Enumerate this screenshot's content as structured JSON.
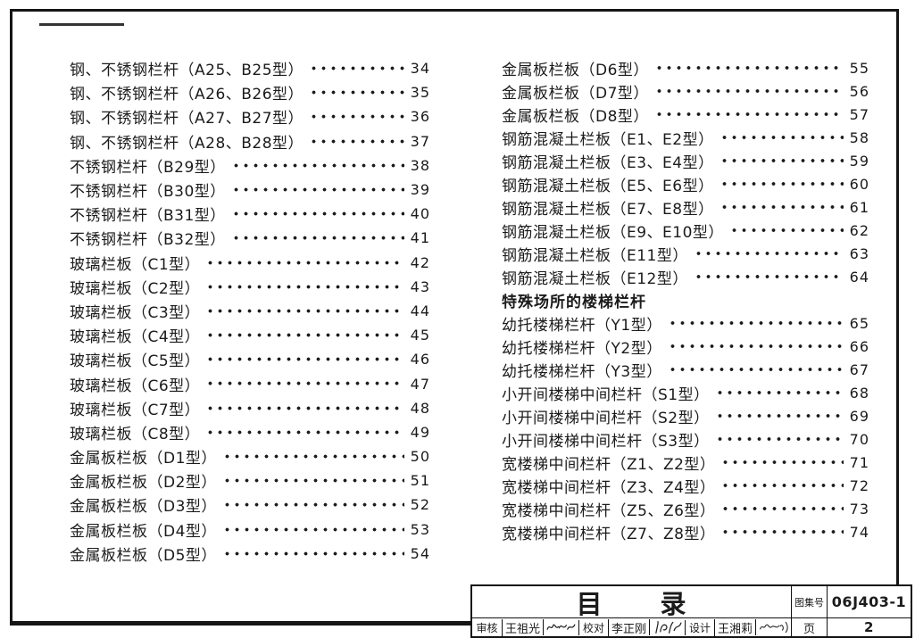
{
  "page": {
    "background": "#ffffff",
    "ink": "#1b1b1b"
  },
  "toc": {
    "left_column": [
      {
        "type": "entry",
        "title": "钢、不锈钢栏杆（A25、B25型）",
        "page": "34"
      },
      {
        "type": "entry",
        "title": "钢、不锈钢栏杆（A26、B26型）",
        "page": "35"
      },
      {
        "type": "entry",
        "title": "钢、不锈钢栏杆（A27、B27型）",
        "page": "36"
      },
      {
        "type": "entry",
        "title": "钢、不锈钢栏杆（A28、B28型）",
        "page": "37"
      },
      {
        "type": "entry",
        "title": "不锈钢栏杆（B29型）",
        "page": "38"
      },
      {
        "type": "entry",
        "title": "不锈钢栏杆（B30型）",
        "page": "39"
      },
      {
        "type": "entry",
        "title": "不锈钢栏杆（B31型）",
        "page": "40"
      },
      {
        "type": "entry",
        "title": "不锈钢栏杆（B32型）",
        "page": "41"
      },
      {
        "type": "entry",
        "title": "玻璃栏板（C1型）",
        "page": "42"
      },
      {
        "type": "entry",
        "title": "玻璃栏板（C2型）",
        "page": "43"
      },
      {
        "type": "entry",
        "title": "玻璃栏板（C3型）",
        "page": "44"
      },
      {
        "type": "entry",
        "title": "玻璃栏板（C4型）",
        "page": "45"
      },
      {
        "type": "entry",
        "title": "玻璃栏板（C5型）",
        "page": "46"
      },
      {
        "type": "entry",
        "title": "玻璃栏板（C6型）",
        "page": "47"
      },
      {
        "type": "entry",
        "title": "玻璃栏板（C7型）",
        "page": "48"
      },
      {
        "type": "entry",
        "title": "玻璃栏板（C8型）",
        "page": "49"
      },
      {
        "type": "entry",
        "title": "金属板栏板（D1型）",
        "page": "50"
      },
      {
        "type": "entry",
        "title": "金属板栏板（D2型）",
        "page": "51"
      },
      {
        "type": "entry",
        "title": "金属板栏板（D3型）",
        "page": "52"
      },
      {
        "type": "entry",
        "title": "金属板栏板（D4型）",
        "page": "53"
      },
      {
        "type": "entry",
        "title": "金属板栏板（D5型）",
        "page": "54"
      }
    ],
    "right_column": [
      {
        "type": "entry",
        "title": "金属板栏板（D6型）",
        "page": "55"
      },
      {
        "type": "entry",
        "title": "金属板栏板（D7型）",
        "page": "56"
      },
      {
        "type": "entry",
        "title": "金属板栏板（D8型）",
        "page": "57"
      },
      {
        "type": "entry",
        "title": "钢筋混凝土栏板（E1、E2型）",
        "page": "58"
      },
      {
        "type": "entry",
        "title": "钢筋混凝土栏板（E3、E4型）",
        "page": "59"
      },
      {
        "type": "entry",
        "title": "钢筋混凝土栏板（E5、E6型）",
        "page": "60"
      },
      {
        "type": "entry",
        "title": "钢筋混凝土栏板（E7、E8型）",
        "page": "61"
      },
      {
        "type": "entry",
        "title": "钢筋混凝土栏板（E9、E10型）",
        "page": "62"
      },
      {
        "type": "entry",
        "title": "钢筋混凝土栏板（E11型）",
        "page": "63"
      },
      {
        "type": "entry",
        "title": "钢筋混凝土栏板（E12型）",
        "page": "64"
      },
      {
        "type": "heading",
        "title": "特殊场所的楼梯栏杆"
      },
      {
        "type": "entry",
        "title": "幼托楼梯栏杆（Y1型）",
        "page": "65"
      },
      {
        "type": "entry",
        "title": "幼托楼梯栏杆（Y2型）",
        "page": "66"
      },
      {
        "type": "entry",
        "title": "幼托楼梯栏杆（Y3型）",
        "page": "67"
      },
      {
        "type": "entry",
        "title": "小开间楼梯中间栏杆（S1型）",
        "page": "68"
      },
      {
        "type": "entry",
        "title": "小开间楼梯中间栏杆（S2型）",
        "page": "69"
      },
      {
        "type": "entry",
        "title": "小开间楼梯中间栏杆（S3型）",
        "page": "70"
      },
      {
        "type": "entry",
        "title": "宽楼梯中间栏杆（Z1、Z2型）",
        "page": "71"
      },
      {
        "type": "entry",
        "title": "宽楼梯中间栏杆（Z3、Z4型）",
        "page": "72"
      },
      {
        "type": "entry",
        "title": "宽楼梯中间栏杆（Z5、Z6型）",
        "page": "73"
      },
      {
        "type": "entry",
        "title": "宽楼梯中间栏杆（Z7、Z8型）",
        "page": "74"
      }
    ]
  },
  "title_block": {
    "title_chars": [
      "目",
      "录"
    ],
    "atlas_no_label": "图集号",
    "atlas_no": "06J403-1",
    "page_label": "页",
    "page_no": "2",
    "reviewer_label": "审核",
    "reviewer_name": "王祖光",
    "reviewer_signature": "王祖光",
    "checker_label": "校对",
    "checker_name": "李正刚",
    "checker_signature": "李正刚",
    "designer_label": "设计",
    "designer_name": "王湘莉",
    "designer_signature": "王湘莉"
  }
}
